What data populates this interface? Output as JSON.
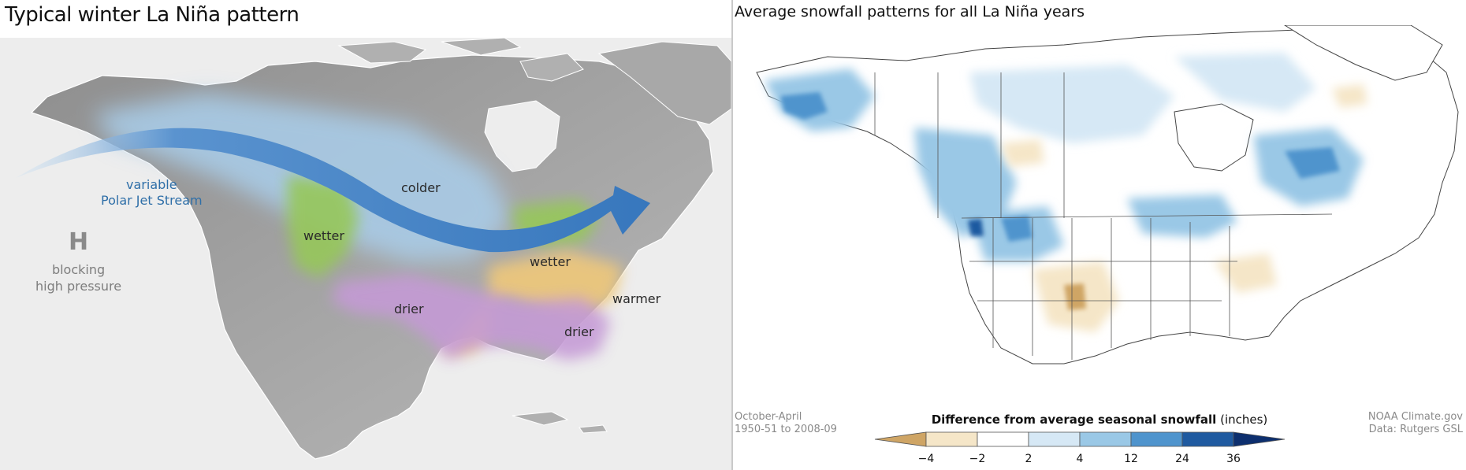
{
  "left_panel": {
    "title": "Typical winter La Niña pattern",
    "jet_stream_label": [
      "variable",
      "Polar Jet Stream"
    ],
    "pressure_symbol": "H",
    "pressure_label": [
      "blocking",
      "high pressure"
    ],
    "regions": {
      "colder": "colder",
      "wetter_west": "wetter",
      "wetter_east": "wetter",
      "drier_west": "drier",
      "drier_east": "drier",
      "warmer": "warmer"
    },
    "colors": {
      "colder": "#a9cdea",
      "jet_stream": "#3f7fc1",
      "wetter": "#96c75a",
      "drier": "#c59ad6",
      "warmer": "#efc87a",
      "land": "#9a9a9a",
      "ocean": "#ececec"
    }
  },
  "right_panel": {
    "title": "Average snowfall patterns for all La Niña years",
    "period_note": [
      "October-April",
      "1950-51 to 2008-09"
    ],
    "credit_note": [
      "NOAA Climate.gov",
      "Data: Rutgers GSL"
    ],
    "legend": {
      "title_bold": "Difference from average seasonal snowfall",
      "title_units": "(inches)",
      "ticks": [
        "−4",
        "−2",
        "2",
        "4",
        "12",
        "24",
        "36"
      ],
      "colors": [
        "#cfa565",
        "#f5e6c8",
        "#ffffff",
        "#d6e8f5",
        "#9ac8e6",
        "#4f94cd",
        "#1f5aa0",
        "#0d2f6e"
      ]
    }
  }
}
